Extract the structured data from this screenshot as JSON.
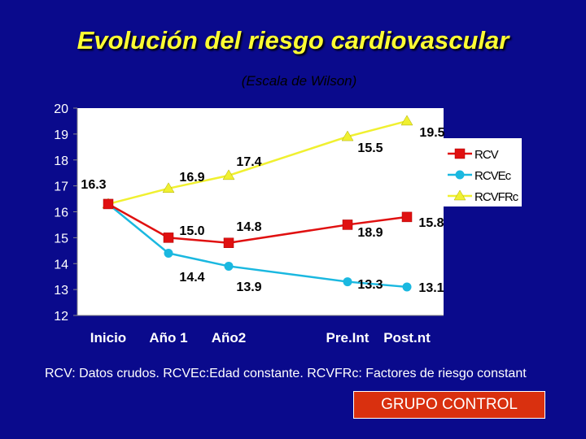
{
  "header": {
    "title": "Evolución del riesgo cardiovascular",
    "subtitle": "(Escala de Wilson)"
  },
  "footnote": "RCV: Datos crudos. RCVEc:Edad constante. RCVFRc: Factores de riesgo constant",
  "group_label": "GRUPO CONTROL",
  "colors": {
    "background": "#0a0a8c",
    "title": "#ffff33",
    "plot_area": "#ffffff",
    "RCV": "#e01010",
    "RCVEc": "#1ab8e0",
    "RCVFRc": "#f0f030",
    "group_box": "#d9300f"
  },
  "chart_data": {
    "type": "line",
    "title": "Evolución del riesgo cardiovascular",
    "subtitle": "(Escala de Wilson)",
    "categories": [
      "Inicio",
      "Año 1",
      "Año2",
      "Pre.Int",
      "Post.nt"
    ],
    "ylim": [
      12,
      20
    ],
    "yticks": [
      20,
      19,
      18,
      17,
      16,
      15,
      14,
      13,
      12
    ],
    "grid": false,
    "legend_position": "right",
    "series": [
      {
        "name": "RCV",
        "marker": "square",
        "values": [
          16.3,
          15.0,
          14.8,
          15.5,
          15.8
        ]
      },
      {
        "name": "RCVEc",
        "marker": "circle",
        "values": [
          16.3,
          14.4,
          13.9,
          13.3,
          13.1
        ]
      },
      {
        "name": "RCVFRc",
        "marker": "triangle",
        "values": [
          16.3,
          16.9,
          17.4,
          18.9,
          19.5
        ]
      }
    ],
    "data_labels": [
      {
        "category": "Inicio",
        "text": "16.3"
      },
      {
        "category": "Año 1",
        "text": "16.9"
      },
      {
        "category": "Año 1",
        "text": "15.0"
      },
      {
        "category": "Año 1",
        "text": "14.4"
      },
      {
        "category": "Año2",
        "text": "17.4"
      },
      {
        "category": "Año2",
        "text": "14.8"
      },
      {
        "category": "Año2",
        "text": "13.9"
      },
      {
        "category": "Pre.Int",
        "text": "18.9"
      },
      {
        "category": "Pre.Int",
        "text": "15.5"
      },
      {
        "category": "Pre.Int",
        "text": "13.3"
      },
      {
        "category": "Post.nt",
        "text": "19.5"
      },
      {
        "category": "Post.nt",
        "text": "15.8"
      },
      {
        "category": "Post.nt",
        "text": "13.1"
      }
    ]
  }
}
